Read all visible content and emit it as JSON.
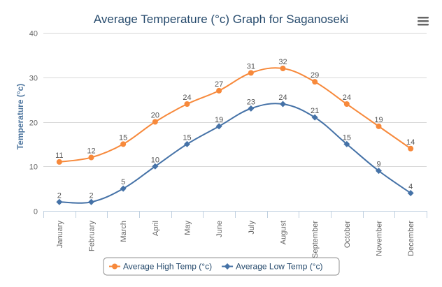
{
  "chart_data": {
    "type": "line",
    "title": "Average Temperature (°c) Graph for Saganoseki",
    "xlabel": "",
    "ylabel": "Temperature (°c)",
    "ylim": [
      0,
      40
    ],
    "yticks": [
      0,
      10,
      20,
      30,
      40
    ],
    "grid": true,
    "legend": "bottom-center",
    "categories": [
      "January",
      "February",
      "March",
      "April",
      "May",
      "June",
      "July",
      "August",
      "September",
      "October",
      "November",
      "December"
    ],
    "series": [
      {
        "name": "Average High Temp (°c)",
        "color": "#f7893b",
        "marker": "circle",
        "values": [
          11,
          12,
          15,
          20,
          24,
          27,
          31,
          32,
          29,
          24,
          19,
          14
        ]
      },
      {
        "name": "Average Low Temp (°c)",
        "color": "#4572a7",
        "marker": "diamond",
        "values": [
          2,
          2,
          5,
          10,
          15,
          19,
          23,
          24,
          21,
          15,
          9,
          4
        ]
      }
    ]
  },
  "toolbar": {
    "menu_icon": "hamburger-menu-icon"
  }
}
